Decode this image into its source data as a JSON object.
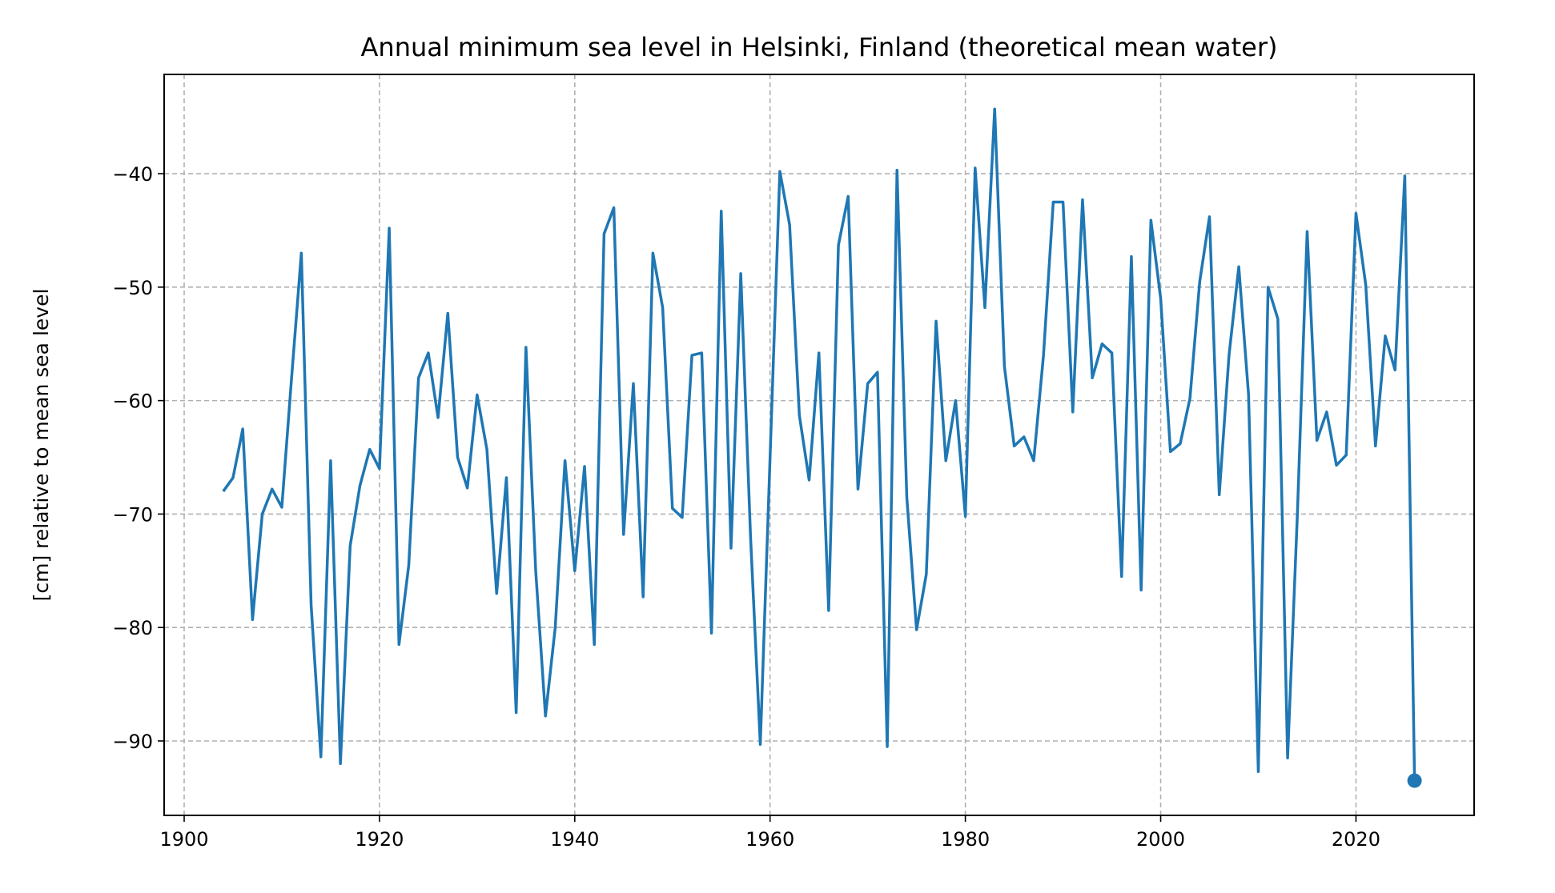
{
  "chart_data": {
    "type": "line",
    "title": "Annual minimum sea level in Helsinki, Finland (theoretical mean water)",
    "xlabel": "",
    "ylabel": "[cm] relative to mean sea level",
    "xlim": [
      1897.95,
      2032.1
    ],
    "ylim": [
      -96.56,
      -31.25
    ],
    "grid": true,
    "xticks": [
      1900,
      1920,
      1940,
      1960,
      1980,
      2000,
      2020
    ],
    "xtick_labels": [
      "1900",
      "1920",
      "1940",
      "1960",
      "1980",
      "2000",
      "2020"
    ],
    "yticks": [
      -40,
      -50,
      -60,
      -70,
      -80,
      -90
    ],
    "ytick_labels": [
      "−40",
      "−50",
      "−60",
      "−70",
      "−80",
      "−90"
    ],
    "color": "#1f77b4",
    "x_start": 1904,
    "values": [
      -68,
      -66.8,
      -62.5,
      -79.3,
      -70,
      -67.8,
      -69.4,
      -58,
      -47,
      -78,
      -91.4,
      -65.3,
      -92,
      -72.8,
      -67.5,
      -64.3,
      -66,
      -44.8,
      -81.5,
      -74.5,
      -58,
      -55.8,
      -61.5,
      -52.3,
      -65,
      -67.7,
      -59.5,
      -64.3,
      -77,
      -66.8,
      -87.5,
      -55.3,
      -75,
      -87.8,
      -80,
      -65.3,
      -75,
      -65.8,
      -81.5,
      -45.3,
      -43,
      -71.8,
      -58.5,
      -77.3,
      -47,
      -51.8,
      -69.5,
      -70.3,
      -56,
      -55.8,
      -80.5,
      -43.3,
      -73,
      -48.8,
      -72,
      -90.3,
      -65,
      -39.8,
      -44.5,
      -61.3,
      -67,
      -55.8,
      -78.5,
      -46.3,
      -42,
      -67.8,
      -58.5,
      -57.5,
      -90.5,
      -39.7,
      -68.5,
      -80.2,
      -75.3,
      -53,
      -65.3,
      -60,
      -70.2,
      -39.5,
      -51.8,
      -34.3,
      -57,
      -64,
      -63.2,
      -65.3,
      -56,
      -42.5,
      -42.5,
      -61,
      -42.3,
      -58,
      -55,
      -55.8,
      -75.5,
      -47.3,
      -76.7,
      -44.1,
      -51,
      -64.5,
      -63.8,
      -59.8,
      -49.5,
      -43.8,
      -68.3,
      -56,
      -48.2,
      -59.5,
      -92.7,
      -50,
      -52.8,
      -91.5,
      -70,
      -45.1,
      -63.5,
      -61,
      -65.7,
      -64.8,
      -43.5,
      -49.8,
      -64,
      -54.3,
      -57.3,
      -40.2,
      -93.5
    ],
    "highlight_last_point": true
  }
}
